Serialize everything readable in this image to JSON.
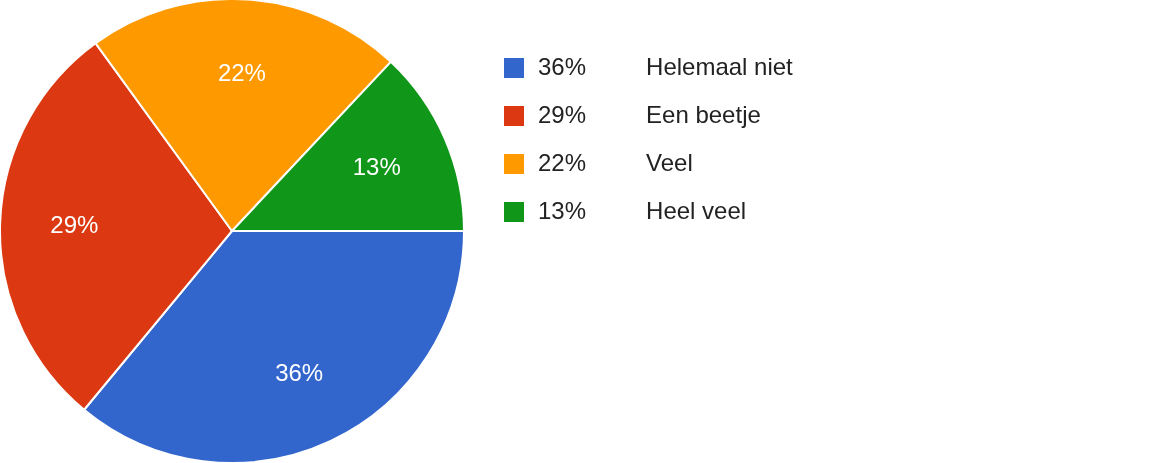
{
  "chart_data": {
    "type": "pie",
    "categories": [
      "Helemaal niet",
      "Een beetje",
      "Veel",
      "Heel veel"
    ],
    "values": [
      36,
      29,
      22,
      13
    ],
    "value_labels": [
      "36%",
      "29%",
      "22%",
      "13%"
    ],
    "colors": [
      "#3366cc",
      "#dc3912",
      "#ff9900",
      "#109618"
    ],
    "legend": "right"
  }
}
